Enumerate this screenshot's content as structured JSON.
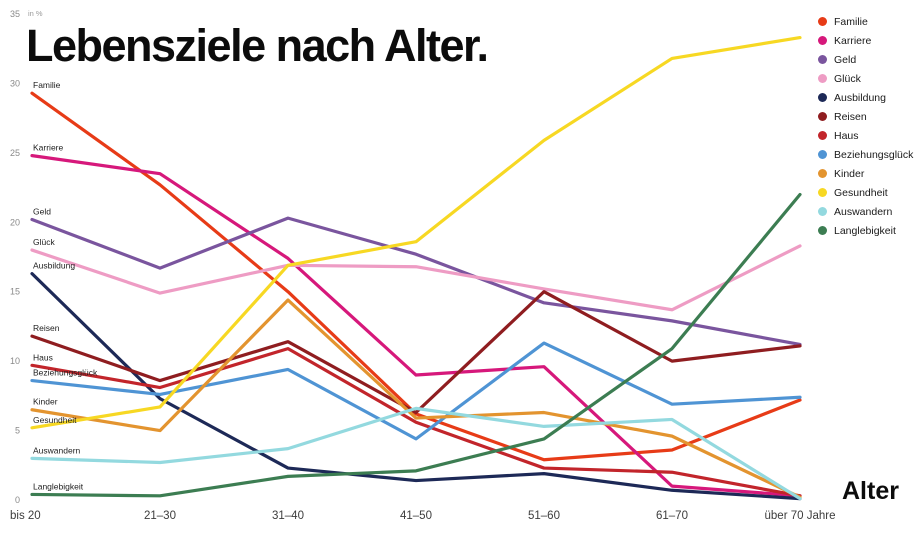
{
  "chart_data": {
    "type": "line",
    "title": "Lebensziele nach Alter.",
    "xlabel": "Alter",
    "unit_label": "in %",
    "categories": [
      "bis 20",
      "21–30",
      "31–40",
      "41–50",
      "51–60",
      "61–70",
      "über 70 Jahre"
    ],
    "ylim": [
      0,
      35
    ],
    "yticks": [
      0,
      5,
      10,
      15,
      20,
      25,
      30,
      35
    ],
    "grid": false,
    "legend_position": "top-right",
    "series": [
      {
        "name": "Familie",
        "color": "#e73b17",
        "values": [
          29.3,
          22.7,
          15.0,
          6.2,
          2.9,
          3.6,
          7.2
        ]
      },
      {
        "name": "Karriere",
        "color": "#d6187b",
        "values": [
          24.8,
          23.5,
          17.4,
          9.0,
          9.6,
          1.0,
          0.3
        ]
      },
      {
        "name": "Geld",
        "color": "#7a559e",
        "values": [
          20.2,
          16.7,
          20.3,
          17.7,
          14.2,
          12.9,
          11.2
        ]
      },
      {
        "name": "Glück",
        "color": "#ee9cc4",
        "values": [
          18.0,
          14.9,
          16.9,
          16.8,
          15.2,
          13.7,
          18.3
        ]
      },
      {
        "name": "Ausbildung",
        "color": "#1d2957",
        "values": [
          16.3,
          7.3,
          2.3,
          1.4,
          1.9,
          0.7,
          0.1
        ]
      },
      {
        "name": "Reisen",
        "color": "#8f1d20",
        "values": [
          11.8,
          8.6,
          11.4,
          6.3,
          15.0,
          10.0,
          11.1
        ]
      },
      {
        "name": "Haus",
        "color": "#c2252b",
        "values": [
          9.7,
          8.1,
          10.9,
          5.6,
          2.3,
          2.0,
          0.3
        ]
      },
      {
        "name": "Beziehungsglück",
        "color": "#4f94d4",
        "values": [
          8.6,
          7.6,
          9.4,
          4.4,
          11.3,
          6.9,
          7.4
        ]
      },
      {
        "name": "Kinder",
        "color": "#e3942f",
        "values": [
          6.5,
          5.0,
          14.4,
          5.9,
          6.3,
          4.6,
          0.2
        ]
      },
      {
        "name": "Gesundheit",
        "color": "#f7d823",
        "values": [
          5.2,
          6.7,
          16.9,
          18.6,
          25.9,
          31.8,
          33.3
        ]
      },
      {
        "name": "Auswandern",
        "color": "#93d9df",
        "values": [
          3.0,
          2.7,
          3.7,
          6.6,
          5.3,
          5.8,
          0.1
        ]
      },
      {
        "name": "Langlebigkeit",
        "color": "#3c7d52",
        "values": [
          0.4,
          0.3,
          1.7,
          2.1,
          4.4,
          10.9,
          22.0
        ]
      }
    ]
  }
}
